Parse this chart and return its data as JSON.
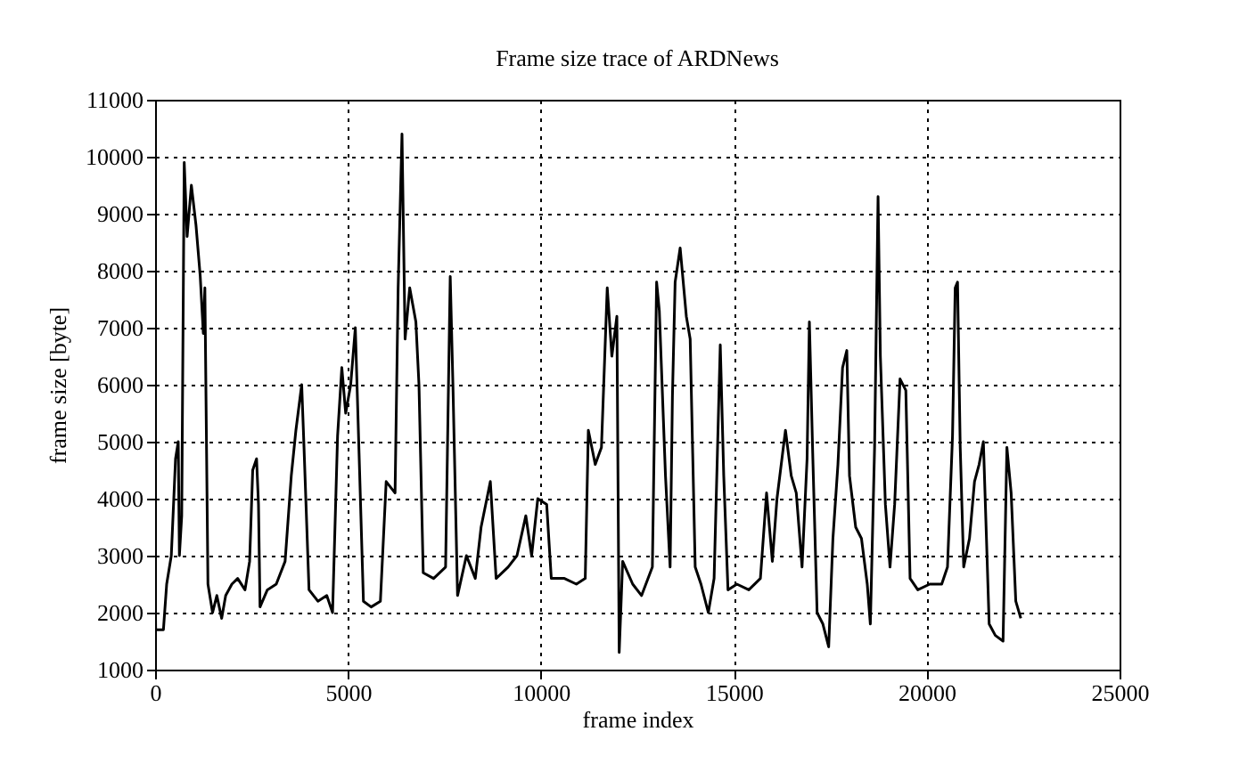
{
  "chart_data": {
    "type": "line",
    "title": "Frame size trace of ARDNews",
    "xlabel": "frame index",
    "ylabel": "frame size [byte]",
    "xlim": [
      0,
      25000
    ],
    "xticks": [
      0,
      5000,
      10000,
      15000,
      20000,
      25000
    ],
    "ylim": [
      1000,
      11000
    ],
    "yticks": [
      1000,
      2000,
      3000,
      4000,
      5000,
      6000,
      7000,
      8000,
      9000,
      10000,
      11000
    ],
    "grid": true,
    "line_style": "solid",
    "marker": "none",
    "series": [
      {
        "color": "#000000",
        "x": [
          0,
          15,
          216,
          300,
          420,
          530,
          600,
          630,
          690,
          755,
          830,
          940,
          1060,
          1170,
          1250,
          1290,
          1370,
          1490,
          1600,
          1725,
          1830,
          1990,
          2140,
          2330,
          2450,
          2530,
          2630,
          2680,
          2720,
          2910,
          3140,
          3370,
          3530,
          3650,
          3800,
          3860,
          3990,
          4220,
          4450,
          4600,
          4730,
          4840,
          4940,
          5070,
          5190,
          5300,
          5400,
          5600,
          5840,
          5990,
          6220,
          6300,
          6400,
          6480,
          6600,
          6760,
          6840,
          6950,
          7220,
          7530,
          7650,
          7720,
          7840,
          8070,
          8300,
          8450,
          8690,
          8840,
          9150,
          9380,
          9610,
          9760,
          9920,
          10150,
          10270,
          10610,
          10920,
          11150,
          11230,
          11410,
          11570,
          11720,
          11840,
          11970,
          12030,
          12120,
          12380,
          12610,
          12890,
          13000,
          13070,
          13230,
          13350,
          13410,
          13480,
          13610,
          13770,
          13870,
          14000,
          14150,
          14340,
          14490,
          14650,
          14740,
          14850,
          15080,
          15390,
          15690,
          15850,
          16000,
          16120,
          16340,
          16490,
          16620,
          16770,
          16900,
          16960,
          17050,
          17160,
          17310,
          17460,
          17570,
          17700,
          17820,
          17930,
          18000,
          18160,
          18310,
          18460,
          18540,
          18650,
          18740,
          18800,
          18930,
          19050,
          19170,
          19310,
          19460,
          19570,
          19770,
          20080,
          20390,
          20540,
          20670,
          20740,
          20800,
          20870,
          20960,
          21110,
          21240,
          21360,
          21470,
          21550,
          21620,
          21780,
          21980,
          22080,
          22190,
          22310,
          22440
        ],
        "values": [
          2900,
          1700,
          1700,
          2500,
          3000,
          4700,
          5000,
          3000,
          3700,
          9900,
          8600,
          9500,
          8800,
          7900,
          6900,
          7700,
          2500,
          2000,
          2300,
          1900,
          2300,
          2500,
          2600,
          2400,
          2900,
          4500,
          4700,
          3900,
          2100,
          2400,
          2500,
          2900,
          4400,
          5200,
          6000,
          4900,
          2400,
          2200,
          2300,
          2000,
          5100,
          6300,
          5500,
          6000,
          7000,
          4500,
          2200,
          2100,
          2200,
          4300,
          4100,
          7700,
          10400,
          6800,
          7700,
          7100,
          6000,
          2700,
          2600,
          2800,
          7900,
          6000,
          2300,
          3000,
          2600,
          3500,
          4300,
          2600,
          2800,
          3000,
          3700,
          3000,
          4000,
          3900,
          2600,
          2600,
          2500,
          2600,
          5200,
          4600,
          4900,
          7700,
          6500,
          7200,
          1300,
          2900,
          2500,
          2300,
          2800,
          7800,
          7300,
          4400,
          2800,
          5800,
          7800,
          8400,
          7200,
          6800,
          2800,
          2500,
          2000,
          2600,
          6700,
          4400,
          2400,
          2500,
          2400,
          2600,
          4100,
          2900,
          4000,
          5200,
          4400,
          4100,
          2800,
          4700,
          7100,
          4700,
          2000,
          1800,
          1400,
          3300,
          4600,
          6300,
          6600,
          4400,
          3500,
          3300,
          2500,
          1800,
          4900,
          9300,
          6500,
          3900,
          2800,
          3900,
          6100,
          5900,
          2600,
          2400,
          2500,
          2500,
          2800,
          5100,
          7700,
          7800,
          4900,
          2800,
          3300,
          4300,
          4600,
          5000,
          3300,
          1800,
          1600,
          1500,
          4900,
          4100,
          2200,
          1900
        ]
      }
    ]
  }
}
